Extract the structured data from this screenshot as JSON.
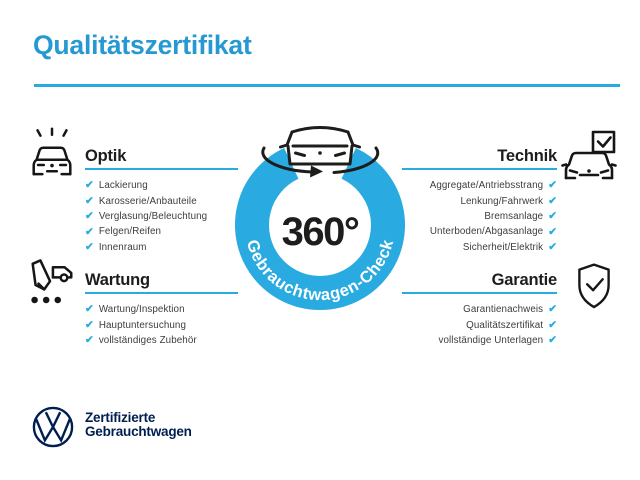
{
  "title": "Qualitätszertifikat",
  "badge": {
    "center_text": "360°",
    "ring_text": "Gebrauchtwagen-Check",
    "car_icon": "rotating-car-icon"
  },
  "check_glyph": "✔",
  "sections": [
    {
      "id": "optik",
      "heading": "Optik",
      "align": "left",
      "icon": "sparkling-car-icon",
      "items": [
        "Lackierung",
        "Karosserie/Anbauteile",
        "Verglasung/Beleuchtung",
        "Felgen/Reifen",
        "Innenraum"
      ]
    },
    {
      "id": "technik",
      "heading": "Technik",
      "align": "right",
      "icon": "car-checkbox-icon",
      "items": [
        "Aggregate/Antriebsstrang",
        "Lenkung/Fahrwerk",
        "Bremsanlage",
        "Unterboden/Abgasanlage",
        "Sicherheit/Elektrik"
      ]
    },
    {
      "id": "wartung",
      "heading": "Wartung",
      "align": "left",
      "icon": "inspection-pencil-car-icon",
      "items": [
        "Wartung/Inspektion",
        "Hauptuntersuchung",
        "vollständiges Zubehör"
      ]
    },
    {
      "id": "garantie",
      "heading": "Garantie",
      "align": "right",
      "icon": "shield-check-icon",
      "items": [
        "Garantienachweis",
        "Qualitätszertifikat",
        "vollständige Unterlagen"
      ]
    }
  ],
  "footer": {
    "logo": "vw-logo",
    "line1": "Zertifizierte",
    "line2": "Gebrauchtwagen"
  },
  "colors": {
    "accent": "#29aae1",
    "title": "#2699d3",
    "navy": "#001e50",
    "text_dark": "#1d1d1b",
    "item_text": "#3d3d3c"
  }
}
